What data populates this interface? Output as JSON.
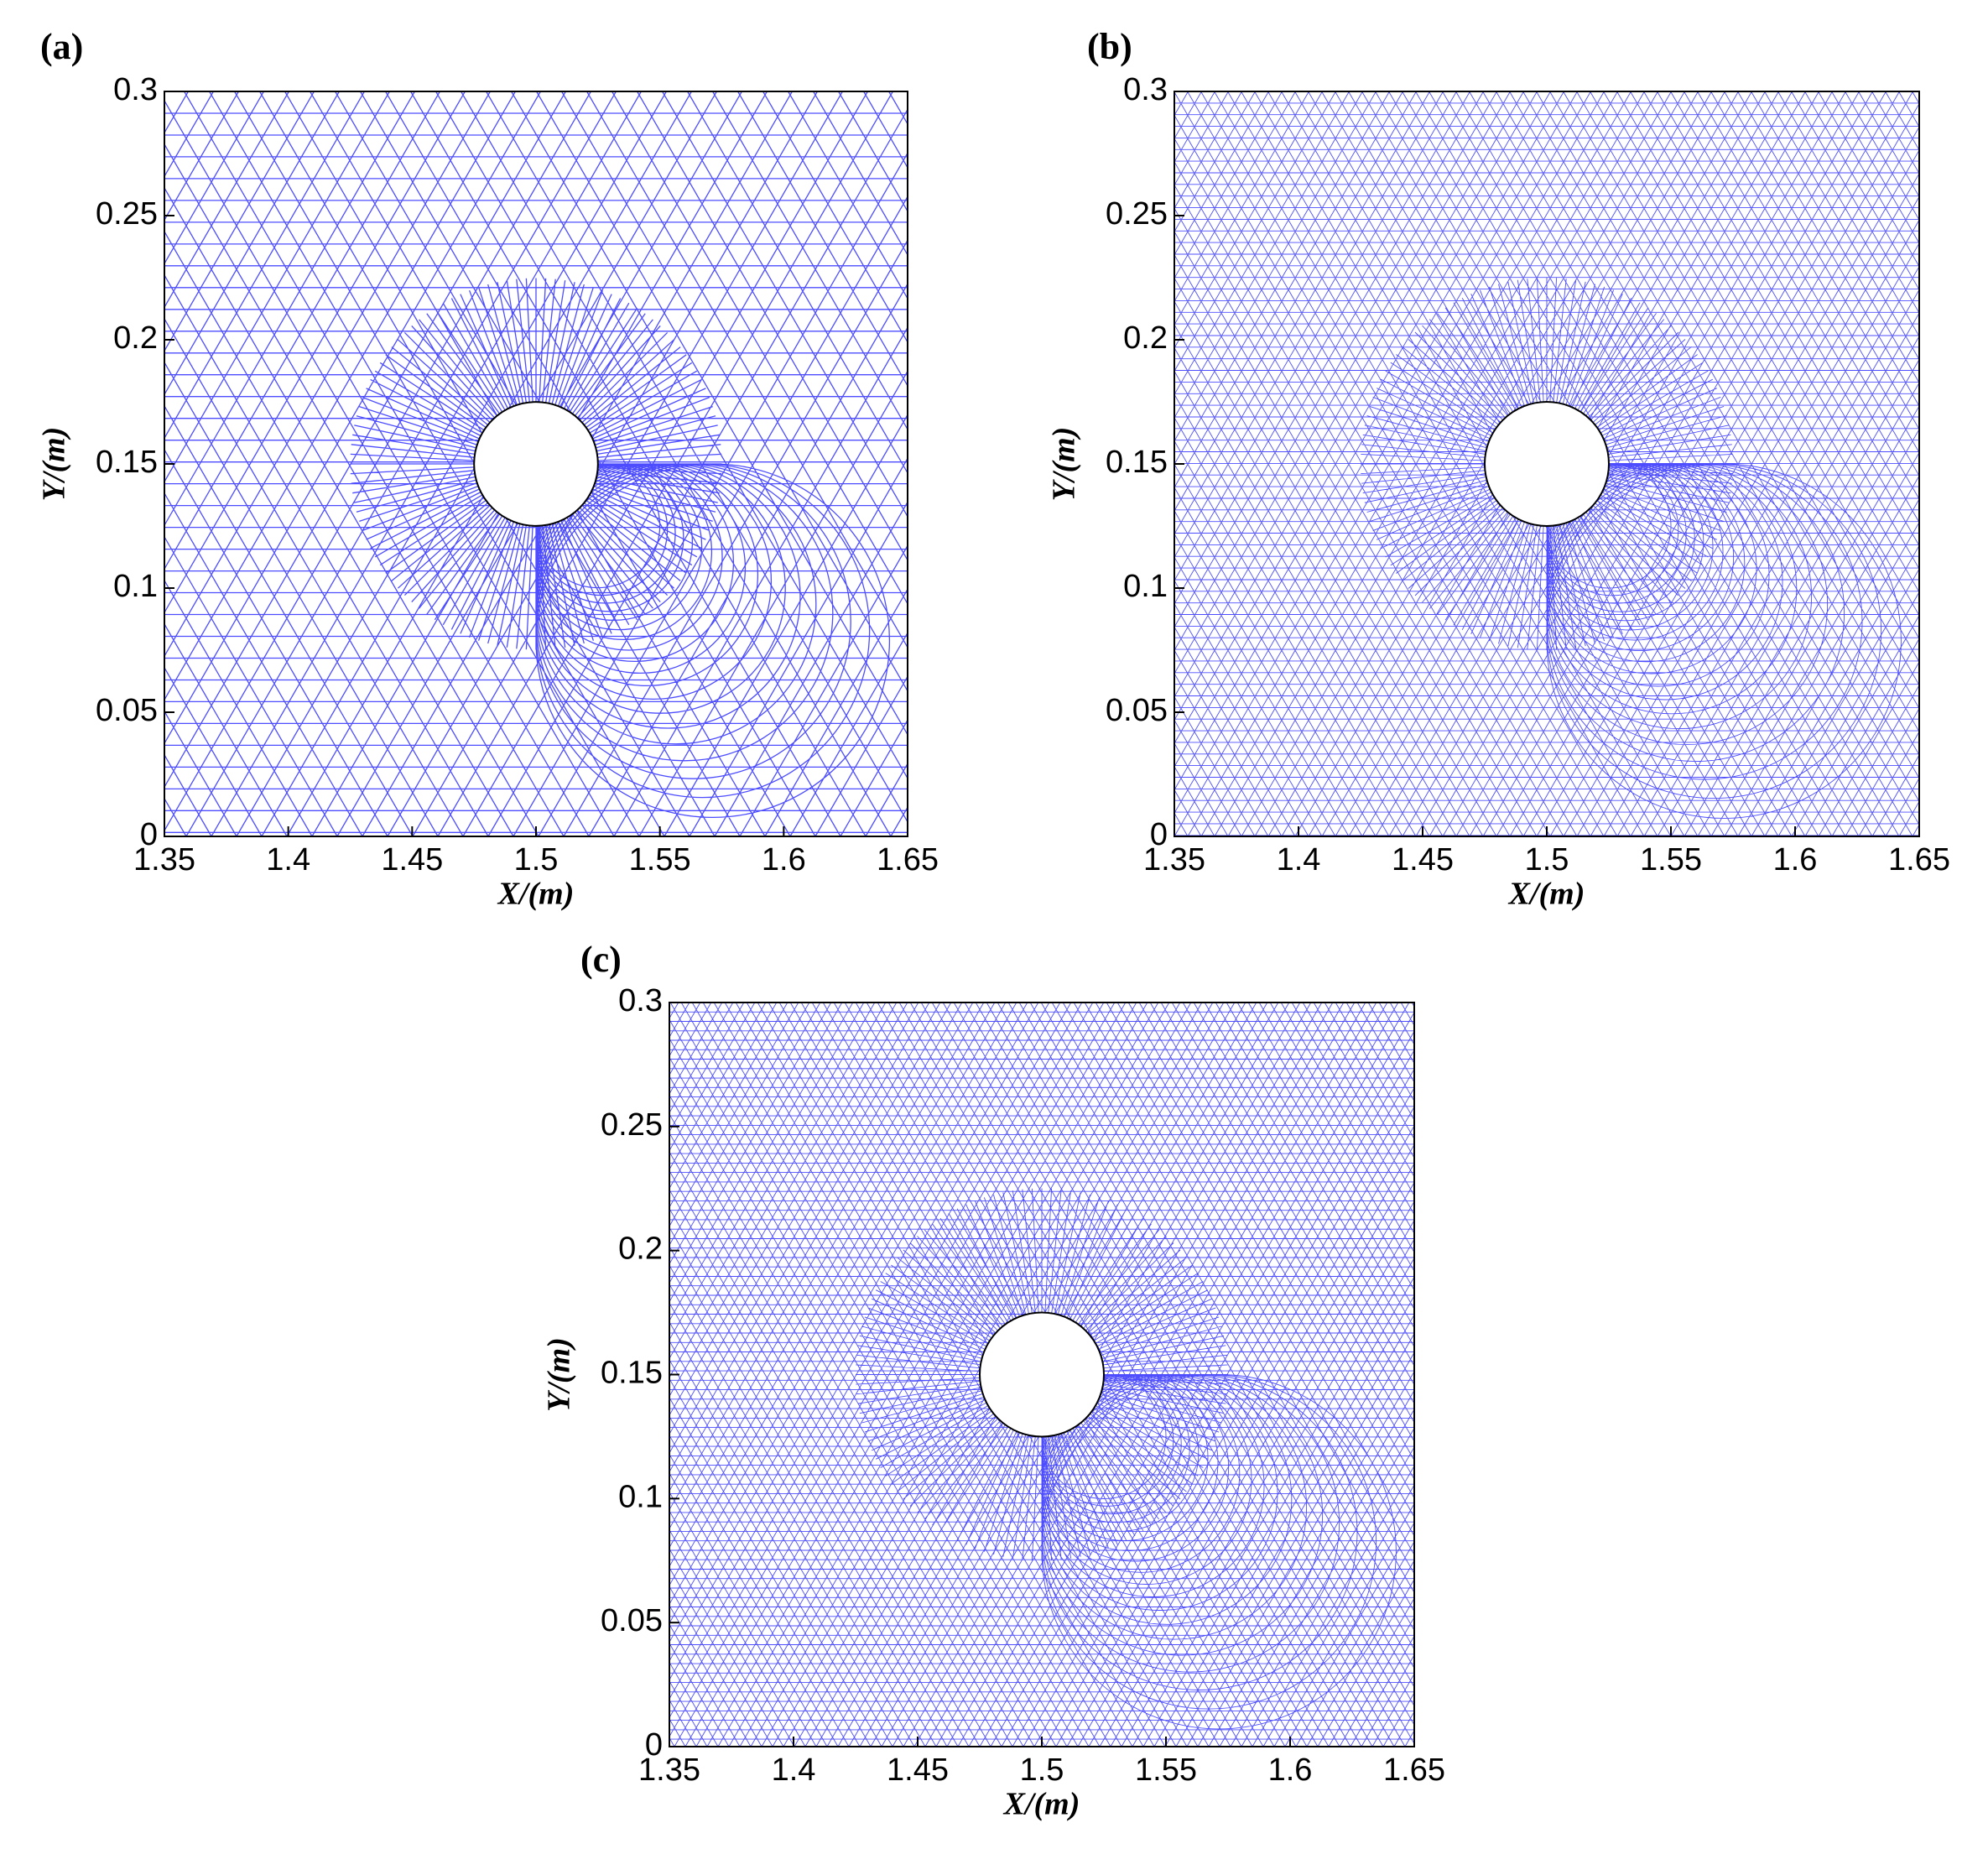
{
  "chart_data": [
    {
      "type": "mesh",
      "title": "(a)",
      "xlabel": "X/(m)",
      "ylabel": "Y/(m)",
      "color": "#3a3aff",
      "xlim": [
        1.35,
        1.65
      ],
      "ylim": [
        0,
        0.3
      ],
      "xticks": [
        1.35,
        1.4,
        1.45,
        1.5,
        1.55,
        1.6,
        1.65
      ],
      "yticks": [
        0,
        0.05,
        0.1,
        0.15,
        0.2,
        0.25,
        0.3
      ]
    },
    {
      "type": "mesh",
      "title": "(b)",
      "xlabel": "X/(m)",
      "ylabel": "Y/(m)",
      "color": "#3a3aff",
      "xlim": [
        1.35,
        1.65
      ],
      "ylim": [
        0,
        0.3
      ],
      "xticks": [
        1.35,
        1.4,
        1.45,
        1.5,
        1.55,
        1.6,
        1.65
      ],
      "yticks": [
        0,
        0.05,
        0.1,
        0.15,
        0.2,
        0.25,
        0.3
      ]
    },
    {
      "type": "mesh",
      "title": "(c)",
      "xlabel": "X/(m)",
      "ylabel": "Y/(m)",
      "color": "#3a3aff",
      "xlim": [
        1.35,
        1.65
      ],
      "ylim": [
        0,
        0.3
      ],
      "xticks": [
        1.35,
        1.4,
        1.45,
        1.5,
        1.55,
        1.6,
        1.65
      ],
      "yticks": [
        0,
        0.05,
        0.1,
        0.15,
        0.2,
        0.25,
        0.3
      ]
    }
  ]
}
